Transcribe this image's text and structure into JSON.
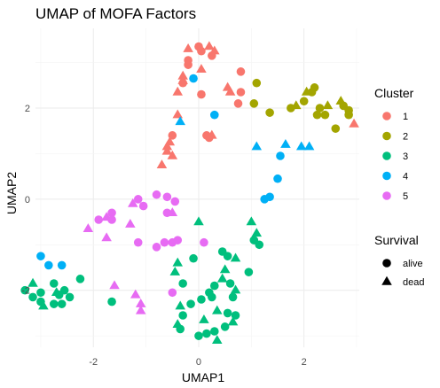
{
  "chart_data": {
    "type": "scatter",
    "title": "UMAP of MOFA Factors",
    "xlabel": "UMAP1",
    "ylabel": "UMAP2",
    "xlim": [
      -3.1,
      3.05
    ],
    "ylim": [
      -3.25,
      3.75
    ],
    "x_ticks": [
      -2,
      0,
      2
    ],
    "y_ticks": [
      -2,
      0,
      2
    ],
    "x_tick_labels": [
      "-2",
      "0",
      "2"
    ],
    "y_tick_labels": [
      "-2",
      "0",
      "2"
    ],
    "grid": true,
    "legend_position": "right",
    "color_legend": {
      "title": "Cluster",
      "items": [
        {
          "label": "1",
          "color": "#F8766D"
        },
        {
          "label": "2",
          "color": "#A3A500"
        },
        {
          "label": "3",
          "color": "#00BF7D"
        },
        {
          "label": "4",
          "color": "#00B0F6"
        },
        {
          "label": "5",
          "color": "#E76BF3"
        }
      ]
    },
    "shape_legend": {
      "title": "Survival",
      "items": [
        {
          "label": "alive",
          "shape": "circle"
        },
        {
          "label": "dead",
          "shape": "triangle"
        }
      ]
    },
    "points": [
      {
        "x": 0.0,
        "y": 3.35,
        "cluster": "1",
        "survival": "alive"
      },
      {
        "x": 0.05,
        "y": 3.25,
        "cluster": "1",
        "survival": "alive"
      },
      {
        "x": -0.2,
        "y": 3.3,
        "cluster": "1",
        "survival": "dead"
      },
      {
        "x": 0.2,
        "y": 3.35,
        "cluster": "1",
        "survival": "dead"
      },
      {
        "x": 0.3,
        "y": 3.25,
        "cluster": "1",
        "survival": "dead"
      },
      {
        "x": 0.25,
        "y": 3.15,
        "cluster": "1",
        "survival": "alive"
      },
      {
        "x": -0.2,
        "y": 3.05,
        "cluster": "1",
        "survival": "alive"
      },
      {
        "x": -0.2,
        "y": 2.95,
        "cluster": "1",
        "survival": "alive"
      },
      {
        "x": 0.05,
        "y": 2.85,
        "cluster": "1",
        "survival": "dead"
      },
      {
        "x": -0.3,
        "y": 2.7,
        "cluster": "1",
        "survival": "dead"
      },
      {
        "x": -0.3,
        "y": 2.6,
        "cluster": "1",
        "survival": "dead"
      },
      {
        "x": 0.8,
        "y": 2.8,
        "cluster": "1",
        "survival": "alive"
      },
      {
        "x": -0.3,
        "y": 2.55,
        "cluster": "1",
        "survival": "alive"
      },
      {
        "x": -0.4,
        "y": 2.35,
        "cluster": "1",
        "survival": "dead"
      },
      {
        "x": 0.05,
        "y": 2.3,
        "cluster": "1",
        "survival": "alive"
      },
      {
        "x": 0.55,
        "y": 2.45,
        "cluster": "1",
        "survival": "dead"
      },
      {
        "x": 0.6,
        "y": 2.35,
        "cluster": "1",
        "survival": "dead"
      },
      {
        "x": 0.8,
        "y": 2.35,
        "cluster": "1",
        "survival": "alive"
      },
      {
        "x": 0.75,
        "y": 2.1,
        "cluster": "1",
        "survival": "alive"
      },
      {
        "x": -0.4,
        "y": 1.85,
        "cluster": "1",
        "survival": "dead"
      },
      {
        "x": 0.15,
        "y": 1.4,
        "cluster": "1",
        "survival": "alive"
      },
      {
        "x": 0.25,
        "y": 1.4,
        "cluster": "1",
        "survival": "dead"
      },
      {
        "x": 0.2,
        "y": 1.35,
        "cluster": "1",
        "survival": "alive"
      },
      {
        "x": -0.5,
        "y": 1.4,
        "cluster": "1",
        "survival": "alive"
      },
      {
        "x": -0.55,
        "y": 1.25,
        "cluster": "1",
        "survival": "dead"
      },
      {
        "x": -0.6,
        "y": 1.15,
        "cluster": "1",
        "survival": "dead"
      },
      {
        "x": -0.6,
        "y": 1.05,
        "cluster": "1",
        "survival": "dead"
      },
      {
        "x": -0.5,
        "y": 0.95,
        "cluster": "1",
        "survival": "dead"
      },
      {
        "x": -0.7,
        "y": 0.75,
        "cluster": "1",
        "survival": "dead"
      },
      {
        "x": 2.95,
        "y": 1.65,
        "cluster": "1",
        "survival": "dead"
      },
      {
        "x": 1.1,
        "y": 2.55,
        "cluster": "2",
        "survival": "alive"
      },
      {
        "x": 1.05,
        "y": 2.1,
        "cluster": "2",
        "survival": "alive"
      },
      {
        "x": 1.35,
        "y": 1.9,
        "cluster": "2",
        "survival": "alive"
      },
      {
        "x": 2.05,
        "y": 2.35,
        "cluster": "2",
        "survival": "dead"
      },
      {
        "x": 2.2,
        "y": 2.45,
        "cluster": "2",
        "survival": "alive"
      },
      {
        "x": 2.15,
        "y": 2.35,
        "cluster": "2",
        "survival": "alive"
      },
      {
        "x": 2.0,
        "y": 2.15,
        "cluster": "2",
        "survival": "alive"
      },
      {
        "x": 1.85,
        "y": 2.05,
        "cluster": "2",
        "survival": "dead"
      },
      {
        "x": 1.75,
        "y": 2.0,
        "cluster": "2",
        "survival": "alive"
      },
      {
        "x": 2.3,
        "y": 2.0,
        "cluster": "2",
        "survival": "alive"
      },
      {
        "x": 2.45,
        "y": 2.05,
        "cluster": "2",
        "survival": "dead"
      },
      {
        "x": 2.7,
        "y": 2.15,
        "cluster": "2",
        "survival": "dead"
      },
      {
        "x": 2.75,
        "y": 2.05,
        "cluster": "2",
        "survival": "alive"
      },
      {
        "x": 2.4,
        "y": 1.85,
        "cluster": "2",
        "survival": "alive"
      },
      {
        "x": 2.25,
        "y": 1.85,
        "cluster": "2",
        "survival": "alive"
      },
      {
        "x": 2.85,
        "y": 1.95,
        "cluster": "2",
        "survival": "alive"
      },
      {
        "x": 2.85,
        "y": 1.85,
        "cluster": "2",
        "survival": "alive"
      },
      {
        "x": 2.6,
        "y": 1.55,
        "cluster": "2",
        "survival": "alive"
      },
      {
        "x": -0.1,
        "y": 2.65,
        "cluster": "4",
        "survival": "alive"
      },
      {
        "x": 0.3,
        "y": 1.85,
        "cluster": "4",
        "survival": "alive"
      },
      {
        "x": -0.35,
        "y": 1.7,
        "cluster": "4",
        "survival": "dead"
      },
      {
        "x": 1.1,
        "y": 1.15,
        "cluster": "4",
        "survival": "dead"
      },
      {
        "x": 1.65,
        "y": 1.2,
        "cluster": "4",
        "survival": "dead"
      },
      {
        "x": 1.95,
        "y": 1.15,
        "cluster": "4",
        "survival": "dead"
      },
      {
        "x": 2.1,
        "y": 1.15,
        "cluster": "4",
        "survival": "dead"
      },
      {
        "x": 1.55,
        "y": 0.95,
        "cluster": "4",
        "survival": "alive"
      },
      {
        "x": 1.5,
        "y": 0.45,
        "cluster": "4",
        "survival": "alive"
      },
      {
        "x": 1.35,
        "y": 0.05,
        "cluster": "4",
        "survival": "alive"
      },
      {
        "x": 1.25,
        "y": 0.0,
        "cluster": "4",
        "survival": "alive"
      },
      {
        "x": -3.0,
        "y": -1.25,
        "cluster": "4",
        "survival": "alive"
      },
      {
        "x": -2.85,
        "y": -1.45,
        "cluster": "4",
        "survival": "alive"
      },
      {
        "x": -2.6,
        "y": -1.45,
        "cluster": "4",
        "survival": "alive"
      },
      {
        "x": -0.8,
        "y": 0.1,
        "cluster": "5",
        "survival": "alive"
      },
      {
        "x": -0.6,
        "y": 0.05,
        "cluster": "5",
        "survival": "alive"
      },
      {
        "x": -1.15,
        "y": 0.0,
        "cluster": "5",
        "survival": "alive"
      },
      {
        "x": -1.25,
        "y": -0.1,
        "cluster": "5",
        "survival": "dead"
      },
      {
        "x": -1.05,
        "y": -0.15,
        "cluster": "5",
        "survival": "alive"
      },
      {
        "x": -0.45,
        "y": -0.05,
        "cluster": "5",
        "survival": "alive"
      },
      {
        "x": -0.6,
        "y": -0.3,
        "cluster": "5",
        "survival": "alive"
      },
      {
        "x": -0.5,
        "y": -0.3,
        "cluster": "5",
        "survival": "dead"
      },
      {
        "x": -1.65,
        "y": -0.3,
        "cluster": "5",
        "survival": "alive"
      },
      {
        "x": -1.75,
        "y": -0.4,
        "cluster": "5",
        "survival": "dead"
      },
      {
        "x": -1.9,
        "y": -0.45,
        "cluster": "5",
        "survival": "alive"
      },
      {
        "x": -1.65,
        "y": -0.45,
        "cluster": "5",
        "survival": "alive"
      },
      {
        "x": -1.3,
        "y": -0.55,
        "cluster": "5",
        "survival": "dead"
      },
      {
        "x": -2.1,
        "y": -0.65,
        "cluster": "5",
        "survival": "dead"
      },
      {
        "x": -1.75,
        "y": -0.85,
        "cluster": "5",
        "survival": "dead"
      },
      {
        "x": -1.15,
        "y": -0.95,
        "cluster": "5",
        "survival": "alive"
      },
      {
        "x": -0.65,
        "y": -0.95,
        "cluster": "5",
        "survival": "alive"
      },
      {
        "x": -0.5,
        "y": -0.95,
        "cluster": "5",
        "survival": "alive"
      },
      {
        "x": -0.4,
        "y": -0.9,
        "cluster": "5",
        "survival": "alive"
      },
      {
        "x": -0.8,
        "y": -1.05,
        "cluster": "5",
        "survival": "alive"
      },
      {
        "x": 0.1,
        "y": -0.95,
        "cluster": "5",
        "survival": "alive"
      },
      {
        "x": -1.6,
        "y": -1.9,
        "cluster": "5",
        "survival": "dead"
      },
      {
        "x": -1.2,
        "y": -2.1,
        "cluster": "5",
        "survival": "dead"
      },
      {
        "x": -1.1,
        "y": -2.3,
        "cluster": "5",
        "survival": "dead"
      },
      {
        "x": -1.1,
        "y": -2.45,
        "cluster": "5",
        "survival": "dead"
      },
      {
        "x": -0.5,
        "y": -2.05,
        "cluster": "5",
        "survival": "alive"
      },
      {
        "x": 0.0,
        "y": -0.5,
        "cluster": "3",
        "survival": "dead"
      },
      {
        "x": 1.0,
        "y": -0.5,
        "cluster": "3",
        "survival": "dead"
      },
      {
        "x": 1.1,
        "y": -0.75,
        "cluster": "3",
        "survival": "dead"
      },
      {
        "x": 1.05,
        "y": -0.9,
        "cluster": "3",
        "survival": "alive"
      },
      {
        "x": 1.15,
        "y": -1.0,
        "cluster": "3",
        "survival": "alive"
      },
      {
        "x": 0.45,
        "y": -1.15,
        "cluster": "3",
        "survival": "alive"
      },
      {
        "x": 0.55,
        "y": -1.25,
        "cluster": "3",
        "survival": "alive"
      },
      {
        "x": 0.7,
        "y": -1.3,
        "cluster": "3",
        "survival": "dead"
      },
      {
        "x": -0.1,
        "y": -1.3,
        "cluster": "3",
        "survival": "alive"
      },
      {
        "x": -0.4,
        "y": -1.4,
        "cluster": "3",
        "survival": "dead"
      },
      {
        "x": 0.5,
        "y": -1.55,
        "cluster": "3",
        "survival": "dead"
      },
      {
        "x": -0.45,
        "y": -1.6,
        "cluster": "3",
        "survival": "dead"
      },
      {
        "x": 0.95,
        "y": -1.6,
        "cluster": "3",
        "survival": "alive"
      },
      {
        "x": 0.45,
        "y": -1.75,
        "cluster": "3",
        "survival": "dead"
      },
      {
        "x": -0.3,
        "y": -1.85,
        "cluster": "3",
        "survival": "alive"
      },
      {
        "x": 0.6,
        "y": -1.85,
        "cluster": "3",
        "survival": "alive"
      },
      {
        "x": 0.3,
        "y": -1.9,
        "cluster": "3",
        "survival": "alive"
      },
      {
        "x": 0.7,
        "y": -2.0,
        "cluster": "3",
        "survival": "dead"
      },
      {
        "x": 0.2,
        "y": -2.05,
        "cluster": "3",
        "survival": "alive"
      },
      {
        "x": 0.25,
        "y": -2.15,
        "cluster": "3",
        "survival": "alive"
      },
      {
        "x": 0.65,
        "y": -2.15,
        "cluster": "3",
        "survival": "alive"
      },
      {
        "x": 0.05,
        "y": -2.2,
        "cluster": "3",
        "survival": "alive"
      },
      {
        "x": -0.35,
        "y": -2.35,
        "cluster": "3",
        "survival": "dead"
      },
      {
        "x": -0.15,
        "y": -2.3,
        "cluster": "3",
        "survival": "alive"
      },
      {
        "x": 0.35,
        "y": -2.45,
        "cluster": "3",
        "survival": "dead"
      },
      {
        "x": 0.55,
        "y": -2.5,
        "cluster": "3",
        "survival": "alive"
      },
      {
        "x": 0.7,
        "y": -2.55,
        "cluster": "3",
        "survival": "alive"
      },
      {
        "x": -0.3,
        "y": -2.55,
        "cluster": "3",
        "survival": "alive"
      },
      {
        "x": 0.1,
        "y": -2.65,
        "cluster": "3",
        "survival": "dead"
      },
      {
        "x": 0.65,
        "y": -2.7,
        "cluster": "3",
        "survival": "dead"
      },
      {
        "x": 0.5,
        "y": -2.8,
        "cluster": "3",
        "survival": "alive"
      },
      {
        "x": -0.35,
        "y": -2.85,
        "cluster": "3",
        "survival": "alive"
      },
      {
        "x": -0.4,
        "y": -2.75,
        "cluster": "3",
        "survival": "dead"
      },
      {
        "x": 0.3,
        "y": -2.9,
        "cluster": "3",
        "survival": "alive"
      },
      {
        "x": 0.0,
        "y": -3.0,
        "cluster": "3",
        "survival": "alive"
      },
      {
        "x": 0.15,
        "y": -2.95,
        "cluster": "3",
        "survival": "alive"
      },
      {
        "x": 0.35,
        "y": -3.1,
        "cluster": "3",
        "survival": "dead"
      },
      {
        "x": -1.65,
        "y": -2.25,
        "cluster": "3",
        "survival": "alive"
      },
      {
        "x": -2.25,
        "y": -1.75,
        "cluster": "3",
        "survival": "alive"
      },
      {
        "x": -2.75,
        "y": -1.85,
        "cluster": "3",
        "survival": "alive"
      },
      {
        "x": -3.15,
        "y": -1.85,
        "cluster": "3",
        "survival": "dead"
      },
      {
        "x": -3.3,
        "y": -2.0,
        "cluster": "3",
        "survival": "alive"
      },
      {
        "x": -3.0,
        "y": -2.05,
        "cluster": "3",
        "survival": "alive"
      },
      {
        "x": -2.7,
        "y": -2.05,
        "cluster": "3",
        "survival": "dead"
      },
      {
        "x": -2.55,
        "y": -2.0,
        "cluster": "3",
        "survival": "alive"
      },
      {
        "x": -2.65,
        "y": -2.1,
        "cluster": "3",
        "survival": "alive"
      },
      {
        "x": -3.15,
        "y": -2.15,
        "cluster": "3",
        "survival": "alive"
      },
      {
        "x": -2.45,
        "y": -2.15,
        "cluster": "3",
        "survival": "alive"
      },
      {
        "x": -3.0,
        "y": -2.25,
        "cluster": "3",
        "survival": "alive"
      },
      {
        "x": -2.6,
        "y": -2.3,
        "cluster": "3",
        "survival": "alive"
      },
      {
        "x": -2.95,
        "y": -2.35,
        "cluster": "3",
        "survival": "dead"
      },
      {
        "x": -2.75,
        "y": -2.3,
        "cluster": "3",
        "survival": "alive"
      }
    ]
  }
}
